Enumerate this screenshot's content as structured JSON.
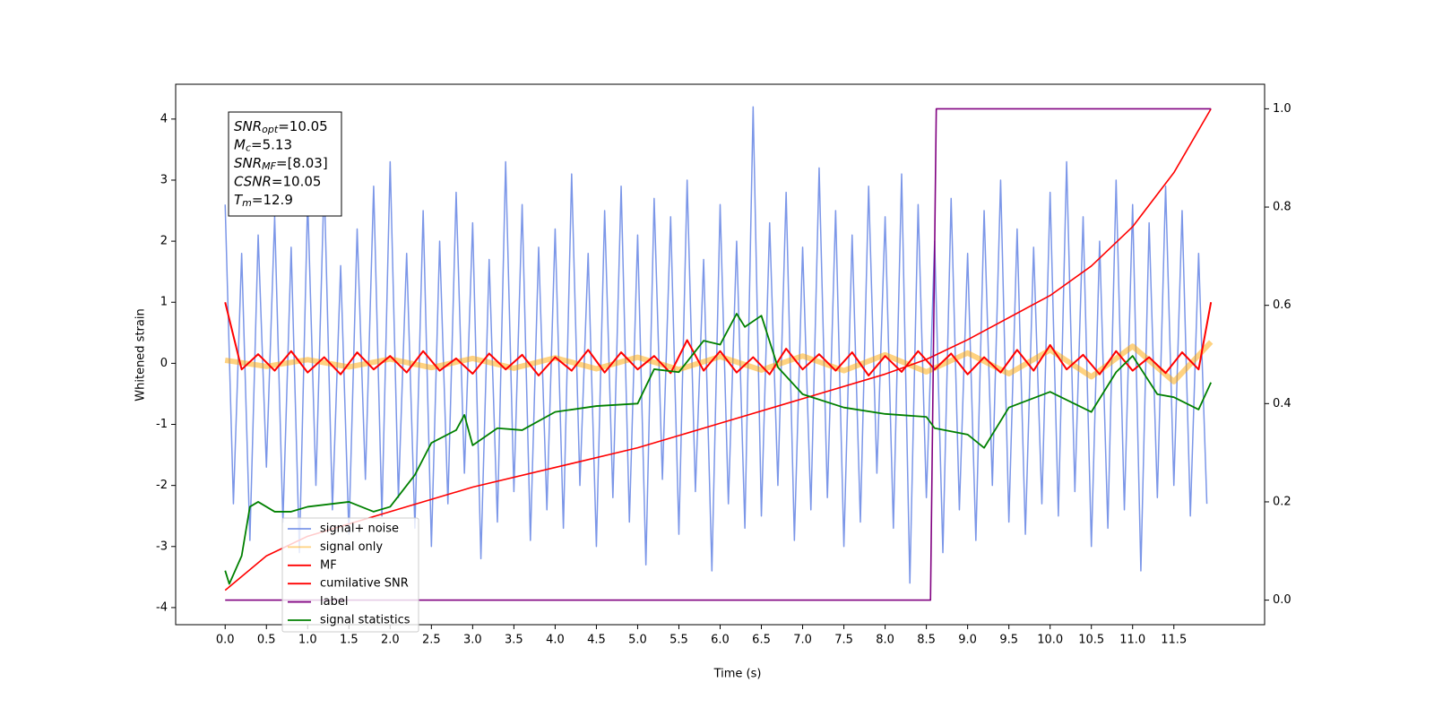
{
  "chart_data": {
    "type": "line",
    "xlabel": "Time (s)",
    "ylabel": "Whitened strain",
    "xlim": [
      -0.6,
      12.6
    ],
    "ylim": [
      -4.28,
      4.57
    ],
    "y2lim": [
      -0.05,
      1.05
    ],
    "xticks": [
      {
        "value": 0,
        "label": "0.0"
      },
      0.5,
      {
        "value": 1,
        "label": "1.0"
      },
      1.5,
      {
        "value": 2,
        "label": "2.0"
      },
      2.5,
      {
        "value": 3,
        "label": "3.0"
      },
      3.5,
      {
        "value": 4,
        "label": "4.0"
      },
      4.5,
      {
        "value": 5,
        "label": "5.0"
      },
      5.5,
      {
        "value": 6,
        "label": "6.0"
      },
      6.5,
      {
        "value": 7,
        "label": "7.0"
      },
      7.5,
      {
        "value": 8,
        "label": "8.0"
      },
      8.5,
      {
        "value": 9,
        "label": "9.0"
      },
      9.5,
      {
        "value": 10,
        "label": "10.0"
      },
      10.5,
      {
        "value": 11,
        "label": "11.0"
      },
      11.5
    ],
    "yticks": [
      -4,
      -3,
      -2,
      -1,
      0,
      1,
      2,
      3,
      4
    ],
    "y2ticks": [
      {
        "value": 0,
        "label": "0.0"
      },
      0.2,
      0.4,
      0.6,
      0.8,
      {
        "value": 1,
        "label": "1.0"
      }
    ],
    "legend": "lower left",
    "annotation": [
      {
        "var": "SNR",
        "sub": "opt",
        "rest": "=10.05"
      },
      {
        "var": "M",
        "sub": "c",
        "rest": "=5.13"
      },
      {
        "var": "SNR",
        "sub": "MF",
        "rest": "=[8.03]"
      },
      {
        "var": "CSNR",
        "rest": "=10.05"
      },
      {
        "var": "T",
        "sub": "m",
        "rest": "=12.9"
      }
    ],
    "series": [
      {
        "name": "signal+ noise",
        "color": "#7b96e8",
        "x": [
          0,
          0.1,
          0.2,
          0.3,
          0.4,
          0.5,
          0.6,
          0.7,
          0.8,
          0.9,
          1,
          1.1,
          1.2,
          1.3,
          1.4,
          1.5,
          1.6,
          1.7,
          1.8,
          1.9,
          2,
          2.1,
          2.2,
          2.3,
          2.4,
          2.5,
          2.6,
          2.7,
          2.8,
          2.9,
          3,
          3.1,
          3.2,
          3.3,
          3.4,
          3.5,
          3.6,
          3.7,
          3.8,
          3.9,
          4,
          4.1,
          4.2,
          4.3,
          4.4,
          4.5,
          4.6,
          4.7,
          4.8,
          4.9,
          5,
          5.1,
          5.2,
          5.3,
          5.4,
          5.5,
          5.6,
          5.7,
          5.8,
          5.9,
          6,
          6.1,
          6.2,
          6.3,
          6.4,
          6.5,
          6.6,
          6.7,
          6.8,
          6.9,
          7,
          7.1,
          7.2,
          7.3,
          7.4,
          7.5,
          7.6,
          7.7,
          7.8,
          7.9,
          8,
          8.1,
          8.2,
          8.3,
          8.4,
          8.5,
          8.6,
          8.7,
          8.8,
          8.9,
          9,
          9.1,
          9.2,
          9.3,
          9.4,
          9.5,
          9.6,
          9.7,
          9.8,
          9.9,
          10,
          10.1,
          10.2,
          10.3,
          10.4,
          10.5,
          10.6,
          10.7,
          10.8,
          10.9,
          11,
          11.1,
          11.2,
          11.3,
          11.4,
          11.5,
          11.6,
          11.7,
          11.8,
          11.9
        ],
        "values": [
          2.6,
          -2.3,
          1.8,
          -2.9,
          2.1,
          -1.7,
          2.4,
          -2.6,
          1.9,
          -3.1,
          2.7,
          -2.0,
          3.0,
          -2.4,
          1.6,
          -2.8,
          2.2,
          -1.9,
          2.9,
          -2.5,
          3.3,
          -2.2,
          1.8,
          -2.7,
          2.5,
          -3.0,
          2.0,
          -2.3,
          2.8,
          -1.8,
          2.3,
          -3.2,
          1.7,
          -2.6,
          3.3,
          -2.1,
          2.6,
          -2.9,
          1.9,
          -2.4,
          2.2,
          -2.7,
          3.1,
          -2.0,
          1.8,
          -3.0,
          2.5,
          -2.2,
          2.9,
          -2.6,
          2.1,
          -3.3,
          2.7,
          -1.9,
          2.4,
          -2.8,
          3.0,
          -2.1,
          1.7,
          -3.4,
          2.6,
          -2.3,
          2.0,
          -2.7,
          4.2,
          -2.5,
          2.3,
          -2.0,
          2.8,
          -2.9,
          1.9,
          -2.4,
          3.2,
          -2.2,
          2.5,
          -3.0,
          2.1,
          -2.6,
          2.9,
          -1.8,
          2.4,
          -2.7,
          3.1,
          -3.6,
          2.6,
          -2.2,
          2.0,
          -3.1,
          2.7,
          -2.4,
          1.8,
          -2.9,
          2.5,
          -2.0,
          3.0,
          -2.6,
          2.2,
          -2.8,
          1.9,
          -2.3,
          2.8,
          -2.5,
          3.3,
          -2.1,
          2.4,
          -3.0,
          2.0,
          -2.7,
          3.0,
          -2.4,
          2.6,
          -3.4,
          2.3,
          -2.2,
          2.9,
          -2.0,
          2.5,
          -2.5,
          1.8,
          -2.3
        ]
      },
      {
        "name": "signal only",
        "color": "#ffa500",
        "x": [
          0,
          0.5,
          1,
          1.5,
          2,
          2.5,
          3,
          3.5,
          4,
          4.5,
          5,
          5.5,
          6,
          6.5,
          7,
          7.5,
          8,
          8.5,
          9,
          9.5,
          10,
          10.5,
          11,
          11.5,
          11.95
        ],
        "values": [
          0.05,
          -0.05,
          0.06,
          -0.06,
          0.07,
          -0.07,
          0.08,
          -0.08,
          0.09,
          -0.09,
          0.1,
          -0.1,
          0.11,
          -0.11,
          0.12,
          -0.12,
          0.14,
          -0.14,
          0.17,
          -0.17,
          0.22,
          -0.22,
          0.28,
          -0.3,
          0.35
        ]
      },
      {
        "name": "MF",
        "color": "#ff0000",
        "x": [
          0,
          0.2,
          0.4,
          0.6,
          0.8,
          1,
          1.2,
          1.4,
          1.6,
          1.8,
          2,
          2.2,
          2.4,
          2.6,
          2.8,
          3,
          3.2,
          3.4,
          3.6,
          3.8,
          4,
          4.2,
          4.4,
          4.6,
          4.8,
          5,
          5.2,
          5.4,
          5.6,
          5.8,
          6,
          6.2,
          6.4,
          6.6,
          6.8,
          7,
          7.2,
          7.4,
          7.6,
          7.8,
          8,
          8.2,
          8.4,
          8.6,
          8.8,
          9,
          9.2,
          9.4,
          9.6,
          9.8,
          10,
          10.2,
          10.4,
          10.6,
          10.8,
          11,
          11.2,
          11.4,
          11.6,
          11.8,
          11.95
        ],
        "values": [
          1.0,
          -0.1,
          0.15,
          -0.12,
          0.2,
          -0.15,
          0.1,
          -0.18,
          0.18,
          -0.1,
          0.12,
          -0.15,
          0.2,
          -0.12,
          0.08,
          -0.17,
          0.16,
          -0.1,
          0.14,
          -0.2,
          0.1,
          -0.12,
          0.22,
          -0.15,
          0.18,
          -0.1,
          0.12,
          -0.16,
          0.38,
          -0.12,
          0.2,
          -0.15,
          0.1,
          -0.18,
          0.24,
          -0.1,
          0.15,
          -0.12,
          0.18,
          -0.2,
          0.12,
          -0.14,
          0.2,
          -0.1,
          0.16,
          -0.18,
          0.1,
          -0.15,
          0.22,
          -0.12,
          0.3,
          -0.1,
          0.14,
          -0.18,
          0.2,
          -0.12,
          0.1,
          -0.16,
          0.18,
          -0.1,
          1.0
        ]
      },
      {
        "name": "cumilative SNR",
        "color": "#ff0000",
        "axis": "y2",
        "x": [
          0,
          0.5,
          1,
          2,
          3,
          4,
          5,
          6,
          7,
          8,
          8.5,
          9,
          10,
          10.5,
          11,
          11.5,
          11.95
        ],
        "values": [
          0.02,
          0.09,
          0.13,
          0.18,
          0.23,
          0.27,
          0.31,
          0.36,
          0.41,
          0.46,
          0.49,
          0.53,
          0.62,
          0.68,
          0.76,
          0.87,
          1.0
        ]
      },
      {
        "name": "label",
        "color": "#800080",
        "axis": "y2",
        "x": [
          0,
          8.55,
          8.62,
          11.95
        ],
        "values": [
          0,
          0,
          1,
          1
        ]
      },
      {
        "name": "signal statistics",
        "color": "#008000",
        "axis": "y2",
        "x": [
          0,
          0.05,
          0.2,
          0.3,
          0.4,
          0.6,
          0.8,
          1,
          1.5,
          1.8,
          2,
          2.3,
          2.5,
          2.8,
          2.9,
          3,
          3.3,
          3.6,
          4,
          4.5,
          5,
          5.2,
          5.5,
          5.8,
          6,
          6.2,
          6.3,
          6.5,
          6.7,
          7,
          7.5,
          8,
          8.5,
          8.6,
          9,
          9.2,
          9.5,
          10,
          10.5,
          10.8,
          11,
          11.3,
          11.5,
          11.8,
          11.95
        ],
        "values": [
          0.06,
          0.033,
          0.09,
          0.19,
          0.2,
          0.18,
          0.18,
          0.19,
          0.2,
          0.18,
          0.19,
          0.255,
          0.32,
          0.346,
          0.377,
          0.315,
          0.35,
          0.346,
          0.383,
          0.395,
          0.4,
          0.47,
          0.464,
          0.528,
          0.52,
          0.583,
          0.556,
          0.579,
          0.474,
          0.419,
          0.392,
          0.379,
          0.373,
          0.35,
          0.337,
          0.31,
          0.392,
          0.424,
          0.383,
          0.464,
          0.497,
          0.419,
          0.413,
          0.388,
          0.443
        ]
      }
    ]
  }
}
